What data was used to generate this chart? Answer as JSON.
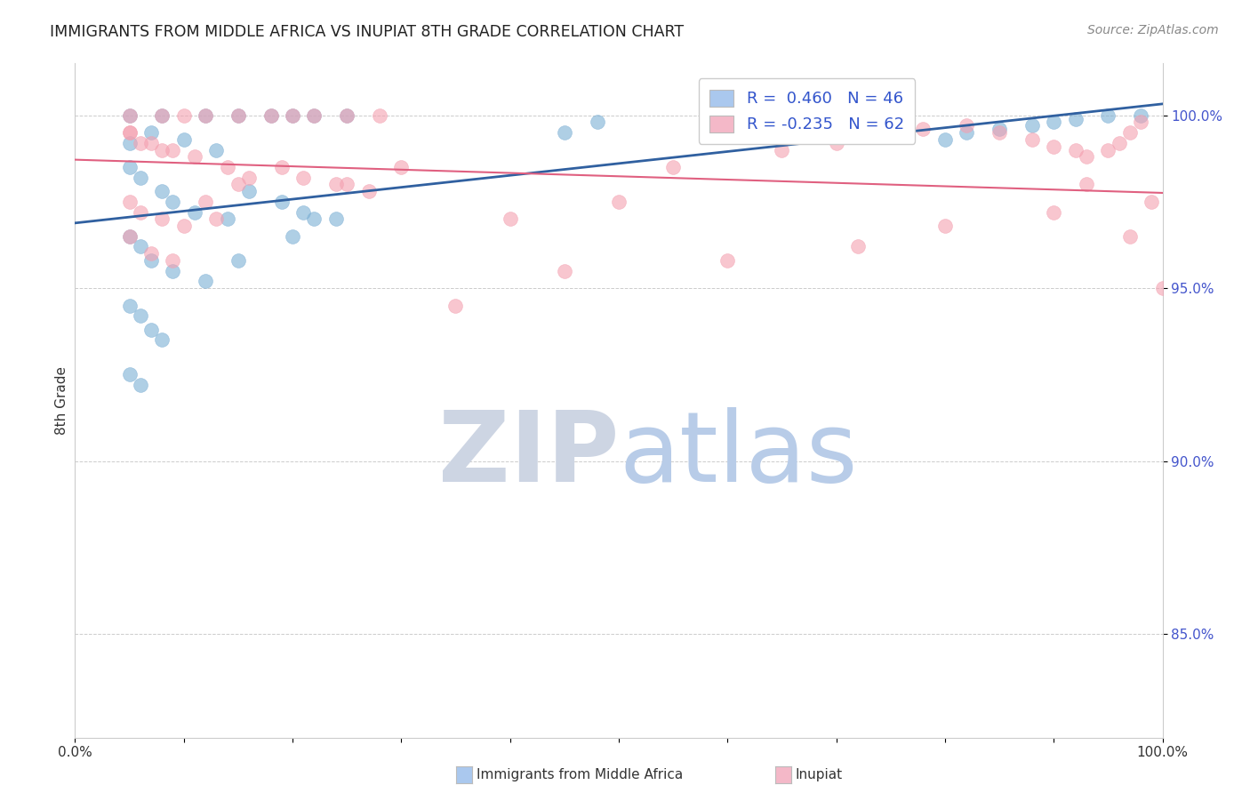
{
  "title": "IMMIGRANTS FROM MIDDLE AFRICA VS INUPIAT 8TH GRADE CORRELATION CHART",
  "source": "Source: ZipAtlas.com",
  "ylabel": "8th Grade",
  "y_min": 82.0,
  "y_max": 101.5,
  "x_min": 0.0,
  "x_max": 1.0,
  "blue_R": 0.46,
  "blue_N": 46,
  "pink_R": -0.235,
  "pink_N": 62,
  "blue_color": "#7bafd4",
  "pink_color": "#f4a0b0",
  "blue_line_color": "#3060a0",
  "pink_line_color": "#e06080",
  "legend_box_blue": "#aac8ee",
  "legend_box_pink": "#f4b8c8",
  "blue_x": [
    0.05,
    0.08,
    0.12,
    0.15,
    0.18,
    0.2,
    0.22,
    0.25,
    0.05,
    0.07,
    0.1,
    0.13,
    0.05,
    0.06,
    0.08,
    0.09,
    0.11,
    0.14,
    0.16,
    0.19,
    0.21,
    0.24,
    0.05,
    0.06,
    0.07,
    0.09,
    0.12,
    0.15,
    0.05,
    0.06,
    0.07,
    0.08,
    0.05,
    0.06,
    0.2,
    0.22,
    0.45,
    0.48,
    0.8,
    0.82,
    0.85,
    0.88,
    0.9,
    0.92,
    0.95,
    0.98
  ],
  "blue_y": [
    100.0,
    100.0,
    100.0,
    100.0,
    100.0,
    100.0,
    100.0,
    100.0,
    99.2,
    99.5,
    99.3,
    99.0,
    98.5,
    98.2,
    97.8,
    97.5,
    97.2,
    97.0,
    97.8,
    97.5,
    97.2,
    97.0,
    96.5,
    96.2,
    95.8,
    95.5,
    95.2,
    95.8,
    94.5,
    94.2,
    93.8,
    93.5,
    92.5,
    92.2,
    96.5,
    97.0,
    99.5,
    99.8,
    99.3,
    99.5,
    99.6,
    99.7,
    99.8,
    99.9,
    100.0,
    100.0
  ],
  "pink_x": [
    0.05,
    0.08,
    0.1,
    0.12,
    0.15,
    0.18,
    0.2,
    0.22,
    0.25,
    0.28,
    0.05,
    0.07,
    0.09,
    0.11,
    0.14,
    0.16,
    0.19,
    0.21,
    0.24,
    0.27,
    0.05,
    0.06,
    0.08,
    0.1,
    0.13,
    0.05,
    0.07,
    0.09,
    0.12,
    0.15,
    0.05,
    0.06,
    0.08,
    0.3,
    0.25,
    0.5,
    0.55,
    0.65,
    0.7,
    0.75,
    0.78,
    0.82,
    0.85,
    0.88,
    0.9,
    0.92,
    0.93,
    0.95,
    0.96,
    0.97,
    0.98,
    0.99,
    1.0,
    0.35,
    0.4,
    0.45,
    0.6,
    0.72,
    0.8,
    0.9,
    0.93,
    0.97
  ],
  "pink_y": [
    100.0,
    100.0,
    100.0,
    100.0,
    100.0,
    100.0,
    100.0,
    100.0,
    100.0,
    100.0,
    99.5,
    99.2,
    99.0,
    98.8,
    98.5,
    98.2,
    98.5,
    98.2,
    98.0,
    97.8,
    97.5,
    97.2,
    97.0,
    96.8,
    97.0,
    96.5,
    96.0,
    95.8,
    97.5,
    98.0,
    99.5,
    99.2,
    99.0,
    98.5,
    98.0,
    97.5,
    98.5,
    99.0,
    99.2,
    99.5,
    99.6,
    99.7,
    99.5,
    99.3,
    99.1,
    99.0,
    98.8,
    99.0,
    99.2,
    99.5,
    99.8,
    97.5,
    95.0,
    94.5,
    97.0,
    95.5,
    95.8,
    96.2,
    96.8,
    97.2,
    98.0,
    96.5
  ],
  "watermark_zip_color": "#cdd5e3",
  "watermark_atlas_color": "#b8cce8",
  "grid_color": "#cccccc",
  "background_color": "#ffffff"
}
